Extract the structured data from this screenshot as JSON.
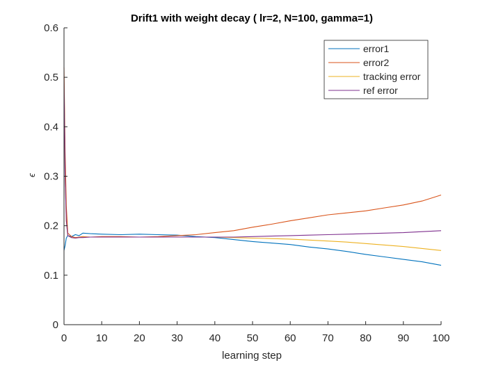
{
  "chart_data": {
    "type": "line",
    "title": "Drift1 with weight decay ( lr=2, N=100, gamma=1)",
    "xlabel": "learning step",
    "ylabel": "ϵ",
    "xlim": [
      0,
      100
    ],
    "ylim": [
      0,
      0.6
    ],
    "xticks": [
      0,
      10,
      20,
      30,
      40,
      50,
      60,
      70,
      80,
      90,
      100
    ],
    "yticks": [
      0,
      0.1,
      0.2,
      0.3,
      0.4,
      0.5,
      0.6
    ],
    "ytick_labels": [
      "0",
      "0.1",
      "0.2",
      "0.3",
      "0.4",
      "0.5",
      "0.6"
    ],
    "grid": false,
    "legend_position": "top-right",
    "x": [
      0,
      0.3,
      0.6,
      1,
      2,
      3,
      4,
      5,
      7,
      10,
      15,
      20,
      25,
      30,
      35,
      40,
      45,
      50,
      55,
      60,
      65,
      70,
      75,
      80,
      85,
      90,
      95,
      100
    ],
    "series": [
      {
        "name": "error1",
        "color": "#0072BD",
        "values": [
          0.15,
          0.16,
          0.175,
          0.18,
          0.178,
          0.182,
          0.18,
          0.185,
          0.184,
          0.183,
          0.182,
          0.183,
          0.182,
          0.181,
          0.178,
          0.176,
          0.172,
          0.168,
          0.165,
          0.162,
          0.157,
          0.153,
          0.148,
          0.142,
          0.137,
          0.132,
          0.127,
          0.12
        ]
      },
      {
        "name": "error2",
        "color": "#D95319",
        "values": [
          0.52,
          0.35,
          0.24,
          0.185,
          0.178,
          0.176,
          0.177,
          0.178,
          0.177,
          0.178,
          0.178,
          0.177,
          0.178,
          0.18,
          0.182,
          0.186,
          0.19,
          0.197,
          0.203,
          0.21,
          0.216,
          0.222,
          0.226,
          0.23,
          0.236,
          0.242,
          0.25,
          0.262
        ]
      },
      {
        "name": "tracking error",
        "color": "#EDB120",
        "values": [
          0.5,
          0.3,
          0.21,
          0.18,
          0.176,
          0.175,
          0.176,
          0.177,
          0.177,
          0.177,
          0.177,
          0.177,
          0.177,
          0.177,
          0.177,
          0.177,
          0.176,
          0.175,
          0.174,
          0.173,
          0.171,
          0.169,
          0.167,
          0.164,
          0.161,
          0.158,
          0.154,
          0.15
        ]
      },
      {
        "name": "ref error",
        "color": "#7E2F8E",
        "values": [
          0.5,
          0.3,
          0.21,
          0.18,
          0.176,
          0.175,
          0.176,
          0.176,
          0.177,
          0.177,
          0.177,
          0.177,
          0.177,
          0.177,
          0.177,
          0.177,
          0.177,
          0.178,
          0.179,
          0.18,
          0.181,
          0.182,
          0.183,
          0.184,
          0.185,
          0.186,
          0.188,
          0.19
        ]
      }
    ]
  }
}
